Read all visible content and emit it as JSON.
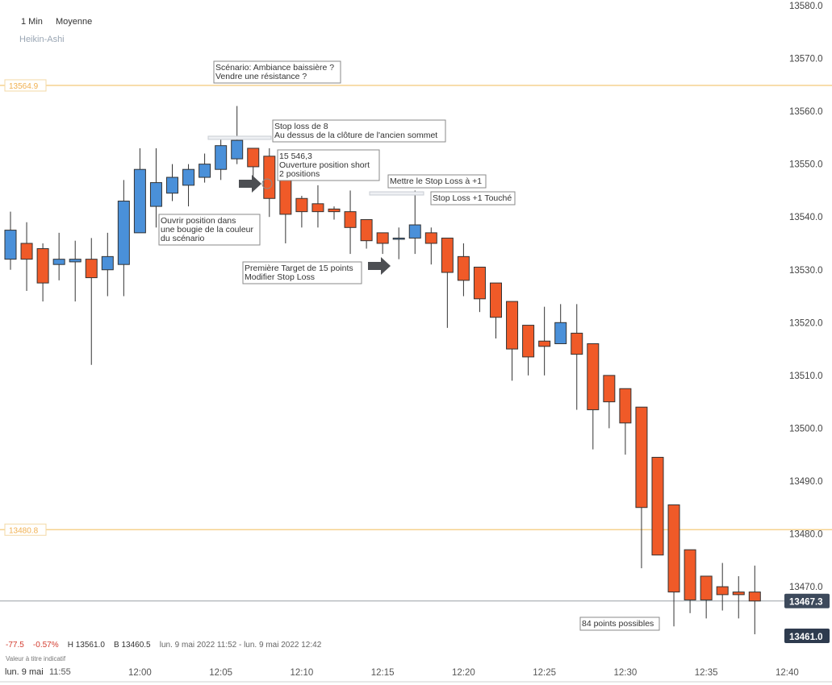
{
  "header": {
    "interval": "1 Min",
    "average": "Moyenne",
    "chart_style": "Heikin-Ashi"
  },
  "colors": {
    "up": "#4a90d9",
    "down": "#f05a28",
    "level_line": "#f6d28f",
    "level_label": "#f0b050",
    "price_badge": "#3d4a5c"
  },
  "status": {
    "change": "-77.5",
    "change_pct": "-0.57%",
    "high": "H 13561.0",
    "low": "B 13460.5",
    "range": "lun. 9 mai 2022 11:52 - lun. 9 mai 2022 12:42",
    "disclaimer": "Valeur à titre indicatif",
    "date_label": "lun. 9 mai",
    "first_time": "11:55"
  },
  "badges": {
    "current": "13467.3",
    "low": "13461.0"
  },
  "levels": [
    {
      "value": 13564.9,
      "label": "13564.9"
    },
    {
      "value": 13480.8,
      "label": "13480.8"
    }
  ],
  "chart_data": {
    "type": "candlestick",
    "style": "Heikin-Ashi",
    "x_ticks": [
      "12:00",
      "12:05",
      "12:10",
      "12:15",
      "12:20",
      "12:25",
      "12:30",
      "12:35",
      "12:40"
    ],
    "y_ticks": [
      "13580.0",
      "13570.0",
      "13560.0",
      "13550.0",
      "13540.0",
      "13530.0",
      "13520.0",
      "13510.0",
      "13500.0",
      "13490.0",
      "13480.0",
      "13470.0"
    ],
    "ylim": [
      13459,
      13581
    ],
    "current_price": 13467.3,
    "candles": [
      {
        "time": "11:52",
        "open": 13532,
        "close": 13537.5,
        "high": 13541,
        "low": 13530
      },
      {
        "time": "11:53",
        "open": 13535,
        "close": 13532,
        "high": 13539,
        "low": 13526
      },
      {
        "time": "11:54",
        "open": 13534,
        "close": 13527.5,
        "high": 13535,
        "low": 13524
      },
      {
        "time": "11:55",
        "open": 13531,
        "close": 13532,
        "high": 13537,
        "low": 13528
      },
      {
        "time": "11:56",
        "open": 13531.5,
        "close": 13532,
        "high": 13535.5,
        "low": 13524
      },
      {
        "time": "11:57",
        "open": 13532,
        "close": 13528.5,
        "high": 13536,
        "low": 13512
      },
      {
        "time": "11:58",
        "open": 13530,
        "close": 13532.5,
        "high": 13537,
        "low": 13525
      },
      {
        "time": "11:59",
        "open": 13531,
        "close": 13543,
        "high": 13547,
        "low": 13525
      },
      {
        "time": "12:00",
        "open": 13537,
        "close": 13549,
        "high": 13553,
        "low": 13537
      },
      {
        "time": "12:01",
        "open": 13542,
        "close": 13546.5,
        "high": 13553,
        "low": 13538
      },
      {
        "time": "12:02",
        "open": 13544.5,
        "close": 13547.5,
        "high": 13550,
        "low": 13543
      },
      {
        "time": "12:03",
        "open": 13546,
        "close": 13549,
        "high": 13550,
        "low": 13542
      },
      {
        "time": "12:04",
        "open": 13547.5,
        "close": 13550,
        "high": 13552,
        "low": 13546.5
      },
      {
        "time": "12:05",
        "open": 13549,
        "close": 13553.5,
        "high": 13555,
        "low": 13547
      },
      {
        "time": "12:06",
        "open": 13551,
        "close": 13554.5,
        "high": 13561,
        "low": 13550
      },
      {
        "time": "12:07",
        "open": 13553,
        "close": 13549.5,
        "high": 13553,
        "low": 13545
      },
      {
        "time": "12:08",
        "open": 13551.5,
        "close": 13543.5,
        "high": 13553,
        "low": 13540
      },
      {
        "time": "12:09",
        "open": 13547.5,
        "close": 13540.5,
        "high": 13547.5,
        "low": 13535
      },
      {
        "time": "12:10",
        "open": 13543.5,
        "close": 13541,
        "high": 13544,
        "low": 13538
      },
      {
        "time": "12:11",
        "open": 13542.5,
        "close": 13541,
        "high": 13546,
        "low": 13538
      },
      {
        "time": "12:12",
        "open": 13541.5,
        "close": 13541,
        "high": 13542,
        "low": 13539.5
      },
      {
        "time": "12:13",
        "open": 13541,
        "close": 13538,
        "high": 13545,
        "low": 13533
      },
      {
        "time": "12:14",
        "open": 13539.5,
        "close": 13535.5,
        "high": 13539.5,
        "low": 13534
      },
      {
        "time": "12:15",
        "open": 13537,
        "close": 13535,
        "high": 13537,
        "low": 13533
      },
      {
        "time": "12:16",
        "open": 13536,
        "close": 13536,
        "high": 13538,
        "low": 13532
      },
      {
        "time": "12:17",
        "open": 13536,
        "close": 13538.5,
        "high": 13545,
        "low": 13533
      },
      {
        "time": "12:18",
        "open": 13537,
        "close": 13535,
        "high": 13538,
        "low": 13531
      },
      {
        "time": "12:19",
        "open": 13536,
        "close": 13529.5,
        "high": 13536,
        "low": 13519
      },
      {
        "time": "12:20",
        "open": 13532.5,
        "close": 13528,
        "high": 13535,
        "low": 13525
      },
      {
        "time": "12:21",
        "open": 13530.5,
        "close": 13524.5,
        "high": 13530.5,
        "low": 13522
      },
      {
        "time": "12:22",
        "open": 13527.5,
        "close": 13521,
        "high": 13527.5,
        "low": 13517
      },
      {
        "time": "12:23",
        "open": 13524,
        "close": 13515,
        "high": 13524,
        "low": 13509
      },
      {
        "time": "12:24",
        "open": 13519.5,
        "close": 13513.5,
        "high": 13519.5,
        "low": 13510
      },
      {
        "time": "12:25",
        "open": 13516.5,
        "close": 13515.5,
        "high": 13523,
        "low": 13510
      },
      {
        "time": "12:26",
        "open": 13516,
        "close": 13520,
        "high": 13523.5,
        "low": 13516
      },
      {
        "time": "12:27",
        "open": 13518,
        "close": 13514,
        "high": 13523.5,
        "low": 13503.5
      },
      {
        "time": "12:28",
        "open": 13516,
        "close": 13503.5,
        "high": 13516,
        "low": 13496
      },
      {
        "time": "12:29",
        "open": 13510,
        "close": 13505,
        "high": 13510,
        "low": 13500
      },
      {
        "time": "12:30",
        "open": 13507.5,
        "close": 13501,
        "high": 13507.5,
        "low": 13495
      },
      {
        "time": "12:31",
        "open": 13504,
        "close": 13485,
        "high": 13504,
        "low": 13473.5
      },
      {
        "time": "12:32",
        "open": 13494.5,
        "close": 13476,
        "high": 13494.5,
        "low": 13476
      },
      {
        "time": "12:33",
        "open": 13485.5,
        "close": 13469,
        "high": 13485.5,
        "low": 13462.5
      },
      {
        "time": "12:34",
        "open": 13477,
        "close": 13467.5,
        "high": 13477,
        "low": 13465
      },
      {
        "time": "12:35",
        "open": 13472,
        "close": 13467.5,
        "high": 13472,
        "low": 13464
      },
      {
        "time": "12:36",
        "open": 13470,
        "close": 13468.5,
        "high": 13474.5,
        "low": 13465.5
      },
      {
        "time": "12:37",
        "open": 13469,
        "close": 13468.5,
        "high": 13472,
        "low": 13464
      },
      {
        "time": "12:38",
        "open": 13469,
        "close": 13467.3,
        "high": 13474,
        "low": 13461
      }
    ],
    "annotations": [
      {
        "id": "scenario",
        "lines": [
          "Scénario: Ambiance baissière ?",
          "Vendre une résistance ?"
        ]
      },
      {
        "id": "stoploss",
        "lines": [
          "Stop loss de 8",
          "Au dessus de la clôture de l'ancien sommet"
        ]
      },
      {
        "id": "entry",
        "lines": [
          "15 546,3",
          "Ouverture position short",
          "2 positions"
        ]
      },
      {
        "id": "move_stop",
        "lines": [
          "Mettre le Stop Loss à +1"
        ]
      },
      {
        "id": "stop_hit",
        "lines": [
          "Stop Loss +1 Touché"
        ]
      },
      {
        "id": "open_pos",
        "lines": [
          "Ouvrir position dans",
          "une bougie de la couleur",
          "du scénario"
        ]
      },
      {
        "id": "target",
        "lines": [
          "Première Target de 15 points",
          "Modifier Stop Loss"
        ]
      },
      {
        "id": "possible",
        "lines": [
          "84 points possibles"
        ]
      }
    ]
  }
}
